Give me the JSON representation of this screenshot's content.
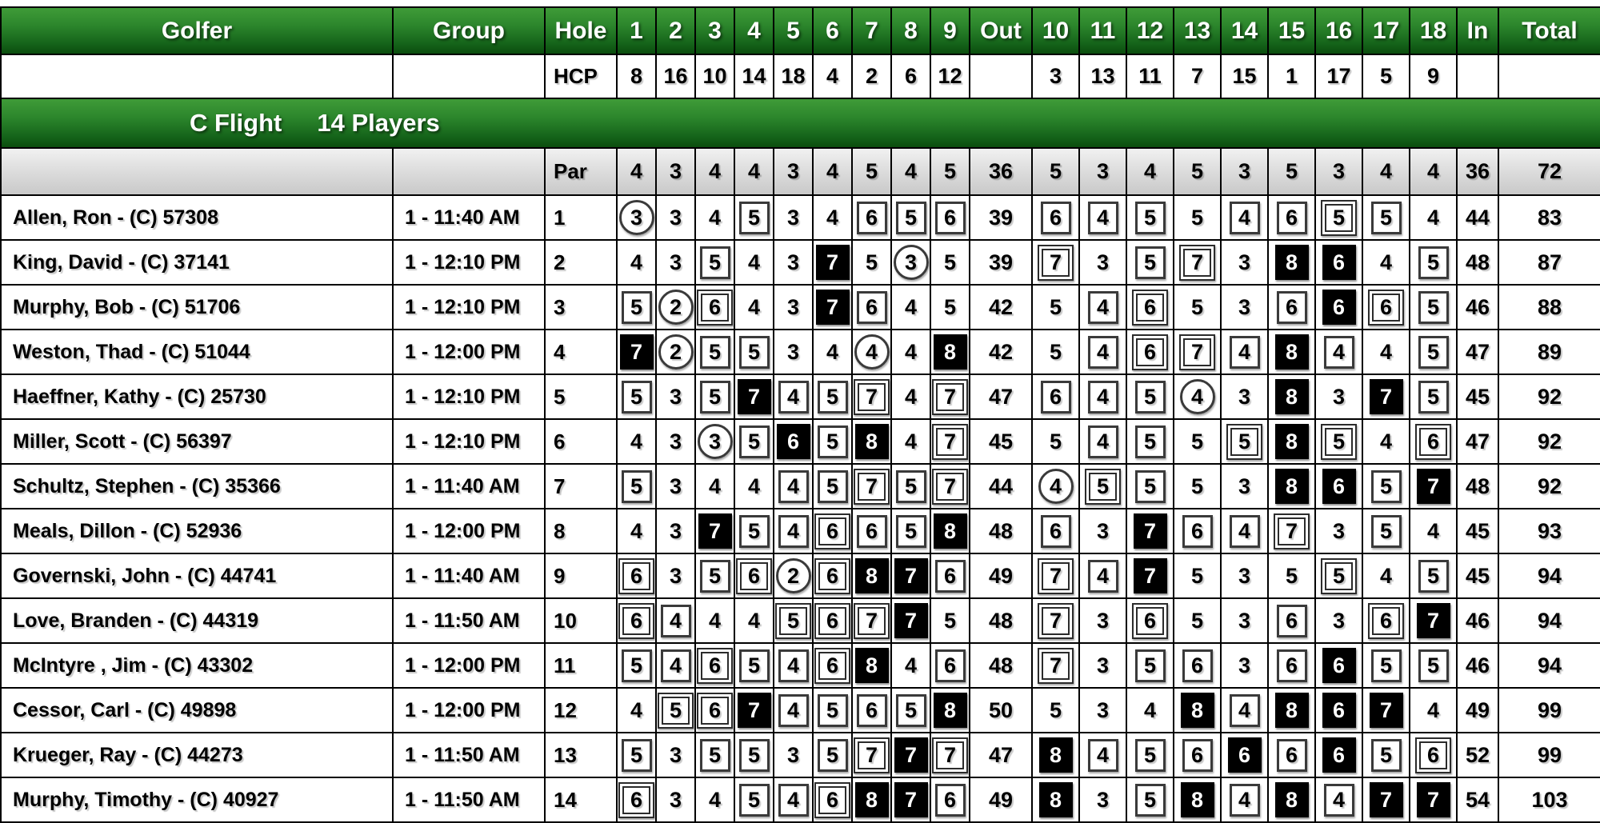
{
  "scorecard": {
    "columns": {
      "golfer": "Golfer",
      "group": "Group",
      "hole": "Hole",
      "out": "Out",
      "in": "In",
      "total": "Total",
      "front_holes": [
        "1",
        "2",
        "3",
        "4",
        "5",
        "6",
        "7",
        "8",
        "9"
      ],
      "back_holes": [
        "10",
        "11",
        "12",
        "13",
        "14",
        "15",
        "16",
        "17",
        "18"
      ]
    },
    "hcp": {
      "label": "HCP",
      "front": [
        8,
        16,
        10,
        14,
        18,
        4,
        2,
        6,
        12
      ],
      "back": [
        3,
        13,
        11,
        7,
        15,
        1,
        17,
        5,
        9
      ]
    },
    "flight_banner": {
      "flight": "C Flight",
      "players": "14 Players"
    },
    "par": {
      "label": "Par",
      "front": [
        4,
        3,
        4,
        4,
        3,
        4,
        5,
        4,
        5
      ],
      "out": 36,
      "back": [
        5,
        3,
        4,
        5,
        3,
        5,
        3,
        4,
        4
      ],
      "in": 36,
      "total": 72
    },
    "players": [
      {
        "name": "Allen, Ron - (C) 57308",
        "group": "1 - 11:40 AM",
        "row": 1,
        "front": [
          3,
          3,
          4,
          5,
          3,
          4,
          6,
          5,
          6
        ],
        "out": 39,
        "back": [
          6,
          4,
          5,
          5,
          4,
          6,
          5,
          5,
          4
        ],
        "in": 44,
        "total": 83
      },
      {
        "name": "King, David - (C) 37141",
        "group": "1 - 12:10 PM",
        "row": 2,
        "front": [
          4,
          3,
          5,
          4,
          3,
          7,
          5,
          3,
          5
        ],
        "out": 39,
        "back": [
          7,
          3,
          5,
          7,
          3,
          8,
          6,
          4,
          5
        ],
        "in": 48,
        "total": 87
      },
      {
        "name": "Murphy, Bob - (C) 51706",
        "group": "1 - 12:10 PM",
        "row": 3,
        "front": [
          5,
          2,
          6,
          4,
          3,
          7,
          6,
          4,
          5
        ],
        "out": 42,
        "back": [
          5,
          4,
          6,
          5,
          3,
          6,
          6,
          6,
          5
        ],
        "in": 46,
        "total": 88
      },
      {
        "name": "Weston, Thad - (C) 51044",
        "group": "1 - 12:00 PM",
        "row": 4,
        "front": [
          7,
          2,
          5,
          5,
          3,
          4,
          4,
          4,
          8
        ],
        "out": 42,
        "back": [
          5,
          4,
          6,
          7,
          4,
          8,
          4,
          4,
          5
        ],
        "in": 47,
        "total": 89
      },
      {
        "name": "Haeffner, Kathy - (C) 25730",
        "group": "1 - 12:10 PM",
        "row": 5,
        "front": [
          5,
          3,
          5,
          7,
          4,
          5,
          7,
          4,
          7
        ],
        "out": 47,
        "back": [
          6,
          4,
          5,
          4,
          3,
          8,
          3,
          7,
          5
        ],
        "in": 45,
        "total": 92
      },
      {
        "name": "Miller, Scott - (C) 56397",
        "group": "1 - 12:10 PM",
        "row": 6,
        "front": [
          4,
          3,
          3,
          5,
          6,
          5,
          8,
          4,
          7
        ],
        "out": 45,
        "back": [
          5,
          4,
          5,
          5,
          5,
          8,
          5,
          4,
          6
        ],
        "in": 47,
        "total": 92
      },
      {
        "name": "Schultz, Stephen - (C) 35366",
        "group": "1 - 11:40 AM",
        "row": 7,
        "front": [
          5,
          3,
          4,
          4,
          4,
          5,
          7,
          5,
          7
        ],
        "out": 44,
        "back": [
          4,
          5,
          5,
          5,
          3,
          8,
          6,
          5,
          7
        ],
        "in": 48,
        "total": 92
      },
      {
        "name": "Meals, Dillon - (C) 52936",
        "group": "1 - 12:00 PM",
        "row": 8,
        "front": [
          4,
          3,
          7,
          5,
          4,
          6,
          6,
          5,
          8
        ],
        "out": 48,
        "back": [
          6,
          3,
          7,
          6,
          4,
          7,
          3,
          5,
          4
        ],
        "in": 45,
        "total": 93
      },
      {
        "name": "Governski, John - (C) 44741",
        "group": "1 - 11:40 AM",
        "row": 9,
        "front": [
          6,
          3,
          5,
          6,
          2,
          6,
          8,
          7,
          6
        ],
        "out": 49,
        "back": [
          7,
          4,
          7,
          5,
          3,
          5,
          5,
          4,
          5
        ],
        "in": 45,
        "total": 94
      },
      {
        "name": "Love, Branden - (C) 44319",
        "group": "1 - 11:50 AM",
        "row": 10,
        "front": [
          6,
          4,
          4,
          4,
          5,
          6,
          7,
          7,
          5
        ],
        "out": 48,
        "back": [
          7,
          3,
          6,
          5,
          3,
          6,
          3,
          6,
          7
        ],
        "in": 46,
        "total": 94
      },
      {
        "name": "McIntyre , Jim - (C) 43302",
        "group": "1 - 12:00 PM",
        "row": 11,
        "front": [
          5,
          4,
          6,
          5,
          4,
          6,
          8,
          4,
          6
        ],
        "out": 48,
        "back": [
          7,
          3,
          5,
          6,
          3,
          6,
          6,
          5,
          5
        ],
        "in": 46,
        "total": 94
      },
      {
        "name": "Cessor, Carl - (C) 49898",
        "group": "1 - 12:00 PM",
        "row": 12,
        "front": [
          4,
          5,
          6,
          7,
          4,
          5,
          6,
          5,
          8
        ],
        "out": 50,
        "back": [
          5,
          3,
          4,
          8,
          4,
          8,
          6,
          7,
          4
        ],
        "in": 49,
        "total": 99
      },
      {
        "name": "Krueger, Ray - (C) 44273",
        "group": "1 - 11:50 AM",
        "row": 13,
        "front": [
          5,
          3,
          5,
          5,
          3,
          5,
          7,
          7,
          7
        ],
        "out": 47,
        "back": [
          8,
          4,
          5,
          6,
          6,
          6,
          6,
          5,
          6
        ],
        "in": 52,
        "total": 99
      },
      {
        "name": "Murphy, Timothy - (C) 40927",
        "group": "1 - 11:50 AM",
        "row": 14,
        "front": [
          6,
          3,
          4,
          5,
          4,
          6,
          8,
          7,
          6
        ],
        "out": 49,
        "back": [
          8,
          3,
          5,
          8,
          4,
          8,
          4,
          7,
          7
        ],
        "in": 54,
        "total": 103
      }
    ],
    "colors": {
      "header_green_light": "#3f9b38",
      "header_green_dark": "#0b4d0e",
      "par_row_gray": "#d9d9d9",
      "triple_bogey_fill": "#000000",
      "text": "#000000",
      "header_text": "#ffffff"
    },
    "score_marks": {
      "eagle_or_better": "double-circle",
      "birdie": "circle",
      "par": "plain",
      "bogey": "single-box",
      "double_bogey": "double-box",
      "triple_bogey_or_worse": "black-fill"
    }
  }
}
